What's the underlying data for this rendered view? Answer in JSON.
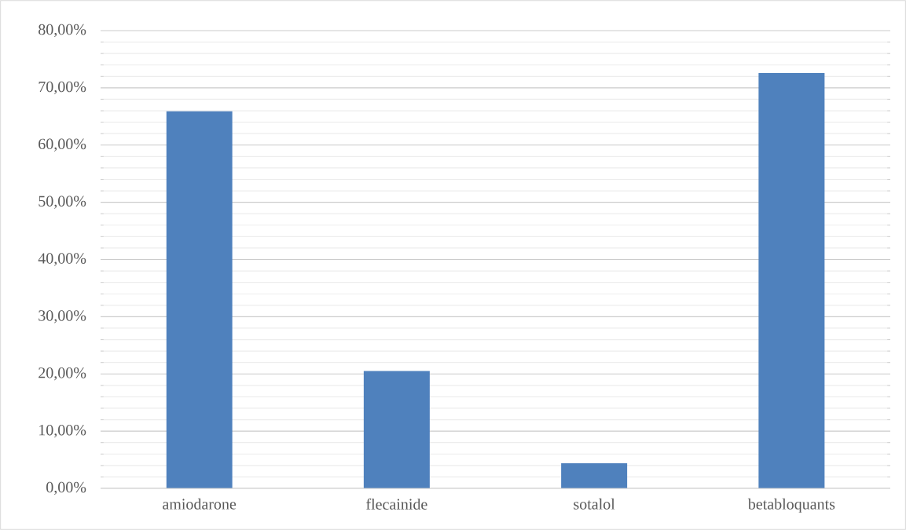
{
  "chart_data": {
    "type": "bar",
    "categories": [
      "amiodarone",
      "flecainide",
      "sotalol",
      "betabloquants"
    ],
    "values": [
      65.9,
      20.5,
      4.4,
      72.6
    ],
    "color": "#4f81bd",
    "ylim": [
      0,
      80
    ],
    "yticks": [
      {
        "value": 0,
        "label": "0,00%"
      },
      {
        "value": 10,
        "label": "10,00%"
      },
      {
        "value": 20,
        "label": "20,00%"
      },
      {
        "value": 30,
        "label": "30,00%"
      },
      {
        "value": 40,
        "label": "40,00%"
      },
      {
        "value": 50,
        "label": "50,00%"
      },
      {
        "value": 60,
        "label": "60,00%"
      },
      {
        "value": 70,
        "label": "70,00%"
      },
      {
        "value": 80,
        "label": "80,00%"
      }
    ],
    "grid": "y"
  }
}
